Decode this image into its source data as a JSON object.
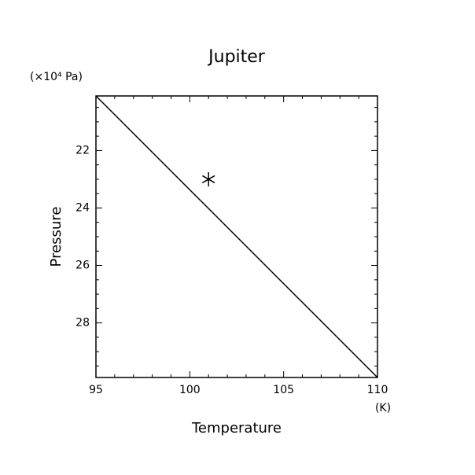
{
  "chart_data": {
    "type": "line",
    "title": "Jupiter",
    "xlabel": "Temperature",
    "ylabel": "Pressure",
    "x_unit": "(K)",
    "y_unit": "(×10⁴ Pa)",
    "xlim": [
      95,
      110
    ],
    "ylim": [
      20.1,
      29.9
    ],
    "y_inverted": true,
    "xticks": [
      95,
      100,
      105,
      110
    ],
    "yticks": [
      22,
      24,
      26,
      28
    ],
    "xminorticks": [
      96,
      97,
      98,
      99,
      101,
      102,
      103,
      104,
      106,
      107,
      108,
      109
    ],
    "yminorticks": [
      20.5,
      21,
      21.5,
      22.5,
      23,
      23.5,
      24.5,
      25,
      25.5,
      26.5,
      27,
      27.5,
      28.5,
      29,
      29.5
    ],
    "series": [
      {
        "x": [
          95,
          110
        ],
        "values": [
          20.1,
          29.9
        ],
        "color": "#000000"
      }
    ],
    "points": {
      "x": [
        101
      ],
      "values": [
        23
      ],
      "marker": "asterisk",
      "color": "#000000"
    }
  }
}
